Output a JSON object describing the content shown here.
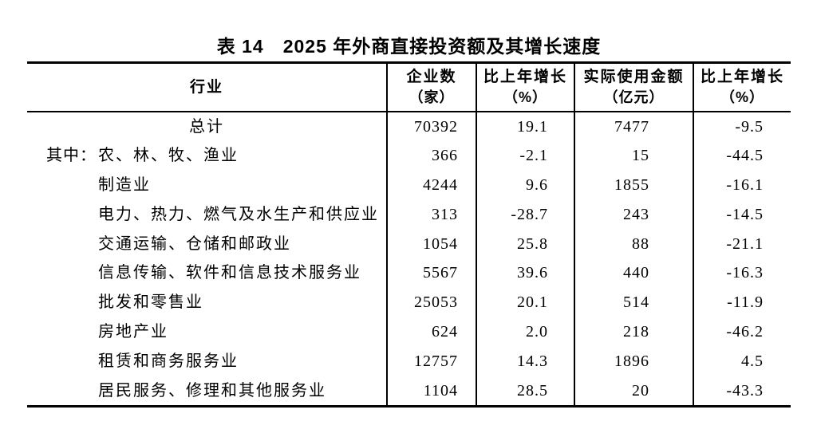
{
  "page": {
    "background_color": "#ffffff",
    "text_color": "#000000",
    "rule_color": "#000000"
  },
  "table": {
    "title": "表 14　2025 年外商直接投资额及其增长速度",
    "columns": [
      {
        "label": "行业",
        "sub": ""
      },
      {
        "label": "企业数",
        "sub": "（家）"
      },
      {
        "label": "比上年增长",
        "sub": "（%）"
      },
      {
        "label": "实际使用金额",
        "sub": "（亿元）"
      },
      {
        "label": "比上年增长",
        "sub": "（%）"
      }
    ],
    "rows": [
      {
        "prefix": "",
        "industry": "总计",
        "align": "center",
        "enterprises": "70392",
        "enterprises_growth": "19.1",
        "amount": "7477",
        "amount_growth": "-9.5"
      },
      {
        "prefix": "其中：",
        "industry": "农、林、牧、渔业",
        "align": "left",
        "enterprises": "366",
        "enterprises_growth": "-2.1",
        "amount": "15",
        "amount_growth": "-44.5"
      },
      {
        "prefix": "",
        "industry": "制造业",
        "align": "left",
        "enterprises": "4244",
        "enterprises_growth": "9.6",
        "amount": "1855",
        "amount_growth": "-16.1"
      },
      {
        "prefix": "",
        "industry": "电力、热力、燃气及水生产和供应业",
        "align": "left",
        "enterprises": "313",
        "enterprises_growth": "-28.7",
        "amount": "243",
        "amount_growth": "-14.5"
      },
      {
        "prefix": "",
        "industry": "交通运输、仓储和邮政业",
        "align": "left",
        "enterprises": "1054",
        "enterprises_growth": "25.8",
        "amount": "88",
        "amount_growth": "-21.1"
      },
      {
        "prefix": "",
        "industry": "信息传输、软件和信息技术服务业",
        "align": "left",
        "enterprises": "5567",
        "enterprises_growth": "39.6",
        "amount": "440",
        "amount_growth": "-16.3"
      },
      {
        "prefix": "",
        "industry": "批发和零售业",
        "align": "left",
        "enterprises": "25053",
        "enterprises_growth": "20.1",
        "amount": "514",
        "amount_growth": "-11.9"
      },
      {
        "prefix": "",
        "industry": "房地产业",
        "align": "left",
        "enterprises": "624",
        "enterprises_growth": "2.0",
        "amount": "218",
        "amount_growth": "-46.2"
      },
      {
        "prefix": "",
        "industry": "租赁和商务服务业",
        "align": "left",
        "enterprises": "12757",
        "enterprises_growth": "14.3",
        "amount": "1896",
        "amount_growth": "4.5"
      },
      {
        "prefix": "",
        "industry": "居民服务、修理和其他服务业",
        "align": "left",
        "enterprises": "1104",
        "enterprises_growth": "28.5",
        "amount": "20",
        "amount_growth": "-43.3"
      }
    ]
  }
}
